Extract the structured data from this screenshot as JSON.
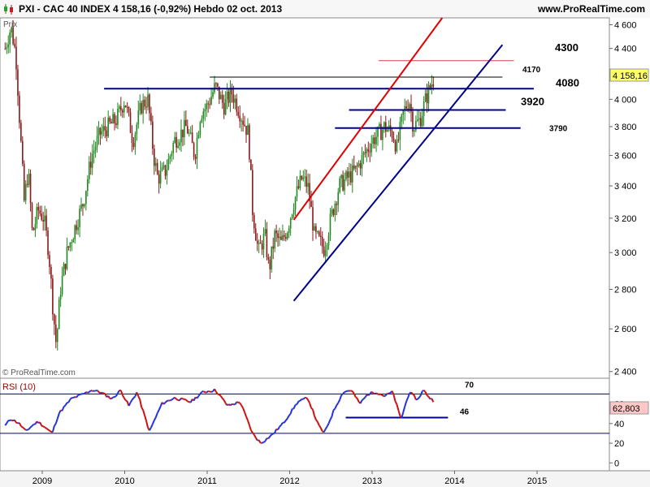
{
  "header": {
    "title": "PXI - CAC 40 INDEX    4 158,16 (-0,92%)    Hebdo  02 oct. 2013",
    "website": "www.ProRealTime.com"
  },
  "icons": {
    "chart_type": "candlestick-icon"
  },
  "price_panel": {
    "label": "Prix",
    "watermark": "© ProRealTime.com",
    "last_price_label": "4 158,16"
  },
  "rsi_panel": {
    "label": "RSI (10)",
    "last_value_label": "62,803"
  },
  "colors": {
    "up": "#1f8a1f",
    "down": "#8b1a1a",
    "channel": "#00008b",
    "trend_red": "#e00000",
    "resistance_4300": "#d04040",
    "rsi_up": "#2233dd",
    "rsi_down": "#cc1111",
    "last_price_box": "#ffff66",
    "rsi_box": "#ffc8c8"
  },
  "chart_data": [
    {
      "type": "candlestick",
      "title": "PXI - CAC 40 INDEX",
      "timeframe": "Hebdo",
      "date": "02 oct. 2013",
      "last": 4158.16,
      "change_pct": -0.92,
      "x_ticks": [
        "2009",
        "2010",
        "2011",
        "2012",
        "2013",
        "2014",
        "2015"
      ],
      "y_ticks": [
        "2 400",
        "2 600",
        "2 800",
        "3 000",
        "3 200",
        "3 400",
        "3 600",
        "3 800",
        "4 000",
        "4 200",
        "4 400",
        "4 600"
      ],
      "x_range": [
        2008.55,
        2015.4
      ],
      "ylim": [
        2370,
        4660
      ],
      "scale": "log",
      "price_path": [
        [
          2008.55,
          4400
        ],
        [
          2008.62,
          4580
        ],
        [
          2008.68,
          4350
        ],
        [
          2008.72,
          3900
        ],
        [
          2008.78,
          3300
        ],
        [
          2008.83,
          3500
        ],
        [
          2008.88,
          3100
        ],
        [
          2008.95,
          3250
        ],
        [
          2009.02,
          3200
        ],
        [
          2009.08,
          3000
        ],
        [
          2009.13,
          2700
        ],
        [
          2009.17,
          2520
        ],
        [
          2009.22,
          2800
        ],
        [
          2009.3,
          3000
        ],
        [
          2009.4,
          3150
        ],
        [
          2009.5,
          3300
        ],
        [
          2009.6,
          3600
        ],
        [
          2009.7,
          3750
        ],
        [
          2009.8,
          3800
        ],
        [
          2009.9,
          3850
        ],
        [
          2010.0,
          4000
        ],
        [
          2010.1,
          3700
        ],
        [
          2010.2,
          3950
        ],
        [
          2010.28,
          4000
        ],
        [
          2010.35,
          3600
        ],
        [
          2010.4,
          3450
        ],
        [
          2010.5,
          3500
        ],
        [
          2010.6,
          3700
        ],
        [
          2010.75,
          3800
        ],
        [
          2010.85,
          3600
        ],
        [
          2010.92,
          3900
        ],
        [
          2011.0,
          3950
        ],
        [
          2011.1,
          4100
        ],
        [
          2011.2,
          3950
        ],
        [
          2011.3,
          4050
        ],
        [
          2011.4,
          3900
        ],
        [
          2011.5,
          3750
        ],
        [
          2011.55,
          3250
        ],
        [
          2011.62,
          3000
        ],
        [
          2011.7,
          3100
        ],
        [
          2011.75,
          2900
        ],
        [
          2011.82,
          3100
        ],
        [
          2011.9,
          3050
        ],
        [
          2011.98,
          3150
        ],
        [
          2012.05,
          3300
        ],
        [
          2012.15,
          3450
        ],
        [
          2012.22,
          3400
        ],
        [
          2012.3,
          3100
        ],
        [
          2012.38,
          3050
        ],
        [
          2012.42,
          3020
        ],
        [
          2012.5,
          3200
        ],
        [
          2012.6,
          3400
        ],
        [
          2012.7,
          3450
        ],
        [
          2012.8,
          3500
        ],
        [
          2012.9,
          3600
        ],
        [
          2013.0,
          3700
        ],
        [
          2013.08,
          3750
        ],
        [
          2013.15,
          3800
        ],
        [
          2013.25,
          3750
        ],
        [
          2013.3,
          3650
        ],
        [
          2013.38,
          3900
        ],
        [
          2013.45,
          4000
        ],
        [
          2013.5,
          3800
        ],
        [
          2013.58,
          3850
        ],
        [
          2013.65,
          4000
        ],
        [
          2013.72,
          4120
        ],
        [
          2013.75,
          4158.16
        ]
      ],
      "levels": [
        {
          "label": "4300",
          "value": 4300
        },
        {
          "label": "4170",
          "value": 4170
        },
        {
          "label": "4080",
          "value": 4080
        },
        {
          "label": "3920",
          "value": 3920
        },
        {
          "label": "3790",
          "value": 3790
        }
      ],
      "annotations": [
        {
          "kind": "trendline",
          "color": "red",
          "from": [
            2012.05,
            3190
          ],
          "to": [
            2013.85,
            4660
          ]
        },
        {
          "kind": "trendline",
          "color": "blue",
          "from": [
            2012.05,
            2740
          ],
          "to": [
            2014.58,
            4430
          ]
        },
        {
          "kind": "horizontal",
          "color": "blue",
          "value": 4080,
          "x_from": 2009.75,
          "x_to": 2014.96
        },
        {
          "kind": "horizontal",
          "color": "blue",
          "value": 3920,
          "x_from": 2012.72,
          "x_to": 2014.62
        },
        {
          "kind": "horizontal",
          "color": "blue",
          "value": 3790,
          "x_from": 2012.55,
          "x_to": 2014.8
        },
        {
          "kind": "horizontal",
          "color": "black",
          "value": 4170,
          "x_from": 2011.03,
          "x_to": 2014.58
        },
        {
          "kind": "horizontal",
          "color": "red",
          "value": 4300,
          "x_from": 2013.08,
          "x_to": 2014.72
        }
      ]
    },
    {
      "type": "line",
      "title": "RSI (10)",
      "ylim": [
        -8,
        86
      ],
      "y_ticks": [
        "0",
        "20",
        "40",
        "60"
      ],
      "levels": [
        {
          "label": "70",
          "value": 70
        },
        {
          "label": "46",
          "value": 46
        },
        {
          "value": 30
        }
      ],
      "last": 62.803,
      "rsi_path": [
        [
          2008.55,
          38
        ],
        [
          2008.62,
          45
        ],
        [
          2008.72,
          40
        ],
        [
          2008.8,
          32
        ],
        [
          2008.88,
          38
        ],
        [
          2008.95,
          42
        ],
        [
          2009.05,
          35
        ],
        [
          2009.12,
          30
        ],
        [
          2009.2,
          50
        ],
        [
          2009.35,
          65
        ],
        [
          2009.5,
          70
        ],
        [
          2009.6,
          74
        ],
        [
          2009.7,
          72
        ],
        [
          2009.85,
          65
        ],
        [
          2009.95,
          74
        ],
        [
          2010.05,
          58
        ],
        [
          2010.15,
          72
        ],
        [
          2010.3,
          32
        ],
        [
          2010.45,
          60
        ],
        [
          2010.6,
          66
        ],
        [
          2010.8,
          62
        ],
        [
          2010.95,
          72
        ],
        [
          2011.1,
          74
        ],
        [
          2011.25,
          58
        ],
        [
          2011.4,
          62
        ],
        [
          2011.55,
          30
        ],
        [
          2011.65,
          20
        ],
        [
          2011.78,
          28
        ],
        [
          2011.92,
          40
        ],
        [
          2012.1,
          62
        ],
        [
          2012.22,
          66
        ],
        [
          2012.35,
          38
        ],
        [
          2012.42,
          30
        ],
        [
          2012.55,
          56
        ],
        [
          2012.65,
          72
        ],
        [
          2012.75,
          74
        ],
        [
          2012.85,
          60
        ],
        [
          2012.95,
          70
        ],
        [
          2013.05,
          72
        ],
        [
          2013.15,
          68
        ],
        [
          2013.25,
          72
        ],
        [
          2013.35,
          44
        ],
        [
          2013.45,
          72
        ],
        [
          2013.55,
          64
        ],
        [
          2013.62,
          74
        ],
        [
          2013.7,
          66
        ],
        [
          2013.75,
          62.803
        ]
      ]
    }
  ]
}
